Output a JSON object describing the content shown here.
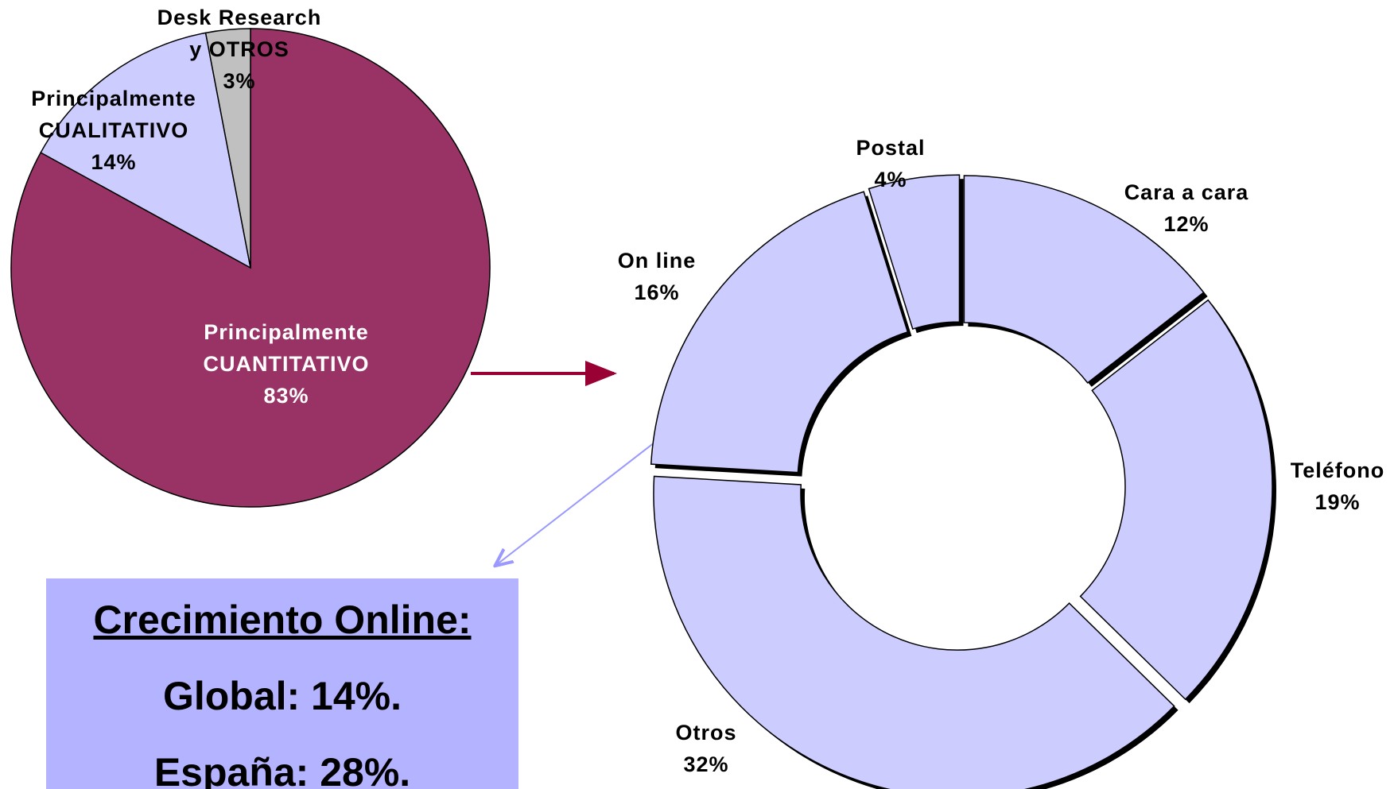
{
  "chart_data": [
    {
      "type": "pie",
      "categories": [
        "Principalmente\nCUANTITATIVO",
        "Principalmente\nCUALITATIVO",
        "Desk Research\ny OTROS"
      ],
      "values": [
        83,
        14,
        3
      ],
      "value_labels": [
        "83%",
        "14%",
        "3%"
      ],
      "colors": [
        "#993366",
        "#ccccff",
        "#c0c0c0"
      ],
      "label_colors": [
        "#ffffff",
        "#000000",
        "#000000"
      ]
    },
    {
      "type": "donut",
      "categories": [
        "Cara a cara",
        "Teléfono",
        "Otros",
        "On line",
        "Postal"
      ],
      "values": [
        12,
        19,
        32,
        16,
        4
      ],
      "value_labels": [
        "12%",
        "19%",
        "32%",
        "16%",
        "4%"
      ],
      "color": "#ccccff"
    }
  ],
  "callout": {
    "title": "Crecimiento Online:",
    "lines": [
      "Global: 14%.",
      "España: 28%."
    ]
  }
}
